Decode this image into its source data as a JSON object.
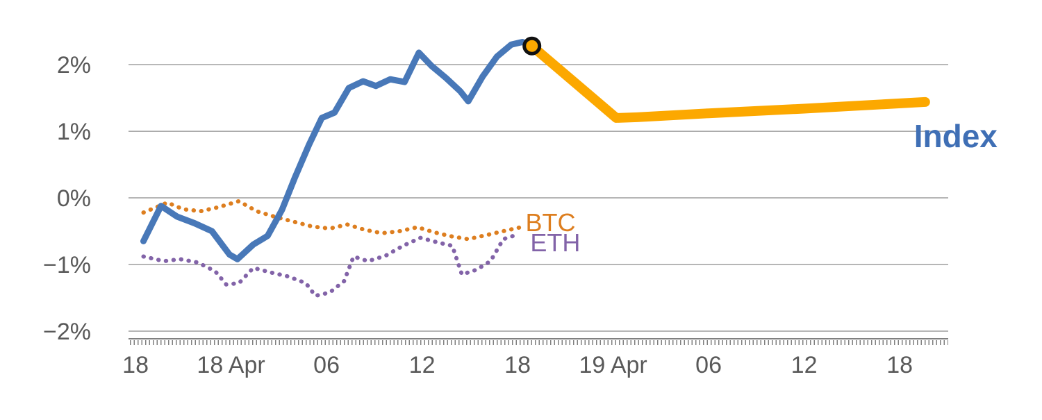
{
  "chart_data": {
    "type": "line",
    "title": "",
    "xlabel": "",
    "ylabel": "",
    "grid": "horizontal",
    "x_axis": {
      "lim": [
        -0.44,
        51.05
      ],
      "ticks": [
        {
          "t": 0,
          "label": "18"
        },
        {
          "t": 6,
          "label": "18 Apr"
        },
        {
          "t": 12,
          "label": "06"
        },
        {
          "t": 18,
          "label": "12"
        },
        {
          "t": 24,
          "label": "18"
        },
        {
          "t": 30,
          "label": "19 Apr"
        },
        {
          "t": 36,
          "label": "06"
        },
        {
          "t": 42,
          "label": "12"
        },
        {
          "t": 48,
          "label": "18"
        }
      ]
    },
    "y_axis": {
      "lim": [
        -2.115,
        2.71
      ],
      "format": "percent",
      "ticks": [
        {
          "v": 2,
          "label": "2%"
        },
        {
          "v": 1,
          "label": "1%"
        },
        {
          "v": 0,
          "label": "0%"
        },
        {
          "v": -1,
          "label": "−1%"
        },
        {
          "v": -2,
          "label": "−2%"
        }
      ]
    },
    "colors": {
      "grid": "#9e9e9e",
      "axis": "#808080",
      "tick_text": "#595959",
      "index_blue": "#4878b8",
      "forecast_amber": "#fca800",
      "btc_orange": "#dd7e1f",
      "eth_purple": "#8263a8",
      "marker_edge": "#111111"
    },
    "series": [
      {
        "name": "BTC",
        "color": "#dd7e1f",
        "style": "dotted",
        "width": 6,
        "points": [
          [
            0.5,
            -0.22
          ],
          [
            2.0,
            -0.07
          ],
          [
            3.0,
            -0.17
          ],
          [
            4.1,
            -0.2
          ],
          [
            5.2,
            -0.14
          ],
          [
            6.5,
            -0.05
          ],
          [
            7.6,
            -0.2
          ],
          [
            8.7,
            -0.28
          ],
          [
            9.8,
            -0.35
          ],
          [
            11.1,
            -0.43
          ],
          [
            12.2,
            -0.46
          ],
          [
            13.3,
            -0.4
          ],
          [
            14.4,
            -0.48
          ],
          [
            15.5,
            -0.53
          ],
          [
            16.6,
            -0.5
          ],
          [
            17.7,
            -0.44
          ],
          [
            18.8,
            -0.52
          ],
          [
            19.9,
            -0.58
          ],
          [
            20.9,
            -0.62
          ],
          [
            22.0,
            -0.56
          ],
          [
            23.1,
            -0.5
          ],
          [
            24.2,
            -0.44
          ]
        ]
      },
      {
        "name": "ETH",
        "color": "#8263a8",
        "style": "dotted",
        "width": 6,
        "points": [
          [
            0.5,
            -0.88
          ],
          [
            1.8,
            -0.95
          ],
          [
            2.8,
            -0.92
          ],
          [
            3.9,
            -0.97
          ],
          [
            5.0,
            -1.1
          ],
          [
            5.7,
            -1.3
          ],
          [
            6.5,
            -1.28
          ],
          [
            7.4,
            -1.05
          ],
          [
            8.5,
            -1.12
          ],
          [
            9.6,
            -1.18
          ],
          [
            10.7,
            -1.28
          ],
          [
            11.3,
            -1.47
          ],
          [
            12.2,
            -1.42
          ],
          [
            13.1,
            -1.25
          ],
          [
            13.7,
            -0.88
          ],
          [
            14.6,
            -0.95
          ],
          [
            15.7,
            -0.87
          ],
          [
            16.8,
            -0.72
          ],
          [
            17.9,
            -0.6
          ],
          [
            19.0,
            -0.67
          ],
          [
            19.9,
            -0.72
          ],
          [
            20.5,
            -1.15
          ],
          [
            21.4,
            -1.08
          ],
          [
            22.3,
            -0.95
          ],
          [
            23.1,
            -0.62
          ],
          [
            24.0,
            -0.55
          ]
        ]
      },
      {
        "name": "Index",
        "color": "#4878b8",
        "style": "solid",
        "width": 9,
        "points": [
          [
            0.5,
            -0.65
          ],
          [
            1.6,
            -0.12
          ],
          [
            2.6,
            -0.28
          ],
          [
            3.7,
            -0.38
          ],
          [
            4.8,
            -0.5
          ],
          [
            5.9,
            -0.85
          ],
          [
            6.4,
            -0.92
          ],
          [
            7.4,
            -0.7
          ],
          [
            8.3,
            -0.57
          ],
          [
            9.2,
            -0.18
          ],
          [
            10.0,
            0.3
          ],
          [
            10.9,
            0.8
          ],
          [
            11.7,
            1.2
          ],
          [
            12.5,
            1.28
          ],
          [
            13.4,
            1.65
          ],
          [
            14.3,
            1.75
          ],
          [
            15.1,
            1.68
          ],
          [
            16.0,
            1.78
          ],
          [
            16.9,
            1.74
          ],
          [
            17.8,
            2.18
          ],
          [
            18.6,
            1.98
          ],
          [
            19.5,
            1.8
          ],
          [
            20.4,
            1.6
          ],
          [
            20.9,
            1.45
          ],
          [
            21.8,
            1.82
          ],
          [
            22.7,
            2.12
          ],
          [
            23.6,
            2.3
          ],
          [
            24.3,
            2.34
          ],
          [
            24.9,
            2.28
          ]
        ]
      },
      {
        "name": "Index-forecast",
        "color": "#fca800",
        "style": "solid",
        "width": 14,
        "points": [
          [
            24.9,
            2.28
          ],
          [
            30.2,
            1.2
          ],
          [
            31.5,
            1.21
          ],
          [
            36,
            1.27
          ],
          [
            42,
            1.34
          ],
          [
            49.6,
            1.44
          ]
        ]
      }
    ],
    "marker": {
      "t": 24.9,
      "v": 2.28,
      "fill": "#fca800",
      "edge": "#111111",
      "radius": 11,
      "edge_width": 5
    },
    "annotations": [
      {
        "text": "BTC",
        "t": 24.5,
        "v": -0.5,
        "color": "#dd7e1f",
        "size": 36,
        "weight": "normal"
      },
      {
        "text": "ETH",
        "t": 24.8,
        "v": -0.8,
        "color": "#8263a8",
        "size": 36,
        "weight": "normal"
      },
      {
        "text": "Index",
        "t": 48.9,
        "v": 0.76,
        "color": "#3f6fb5",
        "size": 46,
        "weight": "bold"
      }
    ]
  }
}
